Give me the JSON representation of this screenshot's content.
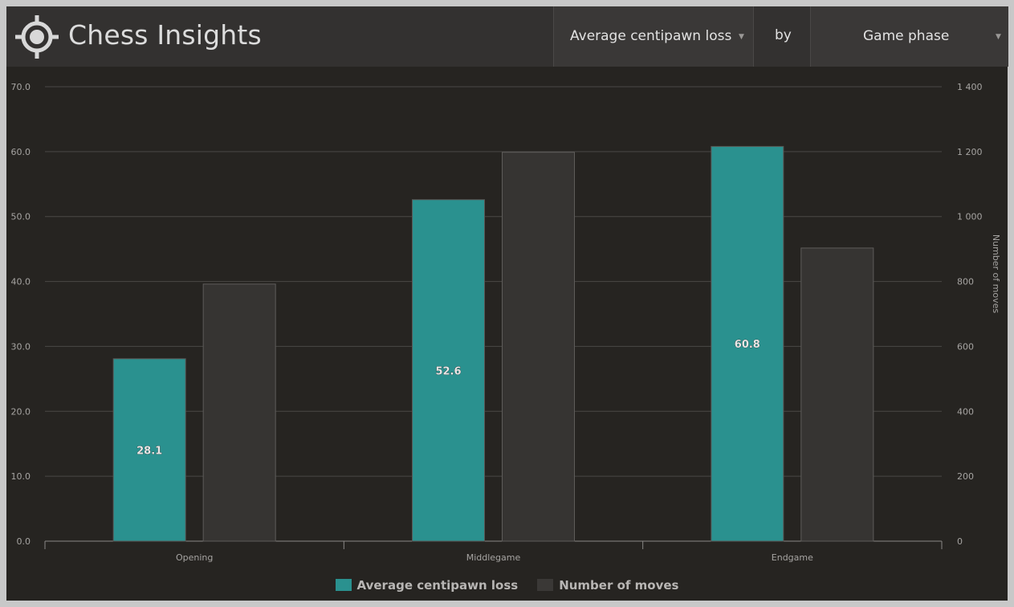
{
  "app": {
    "title": "Chess Insights",
    "icon": "target-icon"
  },
  "controls": {
    "metric_label": "Average centipawn loss",
    "by_label": "by",
    "dimension_label": "Game phase"
  },
  "chart_data": {
    "type": "bar",
    "categories": [
      "Opening",
      "Middlegame",
      "Endgame"
    ],
    "series": [
      {
        "name": "Average centipawn loss",
        "values": [
          28.1,
          52.6,
          60.8
        ],
        "axis": "left",
        "color": "#2a918f",
        "labels": [
          "28.1",
          "52.6",
          "60.8"
        ]
      },
      {
        "name": "Number of moves",
        "values": [
          792,
          1198,
          903
        ],
        "axis": "right",
        "color": "#363432"
      }
    ],
    "y_left": {
      "ylim": [
        0,
        70
      ],
      "ticks": [
        "0.0",
        "10.0",
        "20.0",
        "30.0",
        "40.0",
        "50.0",
        "60.0",
        "70.0"
      ]
    },
    "y_right": {
      "ylim": [
        0,
        1400
      ],
      "label": "Number of moves",
      "ticks": [
        "0",
        "200",
        "400",
        "600",
        "800",
        "1 000",
        "1 200",
        "1 400"
      ]
    },
    "grid": true,
    "legend_position": "bottom-center"
  },
  "colors": {
    "accent": "#2a918f",
    "background": "#262421",
    "header": "#333130"
  }
}
